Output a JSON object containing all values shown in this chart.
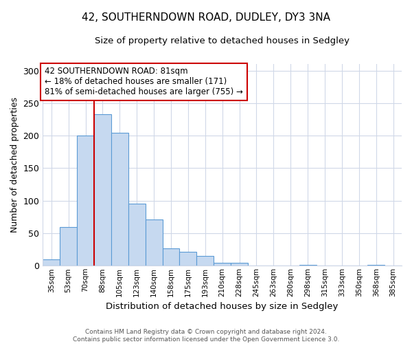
{
  "title": "42, SOUTHERNDOWN ROAD, DUDLEY, DY3 3NA",
  "subtitle": "Size of property relative to detached houses in Sedgley",
  "xlabel": "Distribution of detached houses by size in Sedgley",
  "ylabel": "Number of detached properties",
  "bin_labels": [
    "35sqm",
    "53sqm",
    "70sqm",
    "88sqm",
    "105sqm",
    "123sqm",
    "140sqm",
    "158sqm",
    "175sqm",
    "193sqm",
    "210sqm",
    "228sqm",
    "245sqm",
    "263sqm",
    "280sqm",
    "298sqm",
    "315sqm",
    "333sqm",
    "350sqm",
    "368sqm",
    "385sqm"
  ],
  "bar_heights": [
    10,
    59,
    200,
    233,
    204,
    95,
    71,
    27,
    21,
    15,
    4,
    4,
    0,
    0,
    0,
    1,
    0,
    0,
    0,
    1,
    0
  ],
  "bar_color": "#c6d9f0",
  "bar_edge_color": "#5b9bd5",
  "vline_x_index": 2.5,
  "vline_color": "#cc0000",
  "ylim": [
    0,
    310
  ],
  "yticks": [
    0,
    50,
    100,
    150,
    200,
    250,
    300
  ],
  "annotation_title": "42 SOUTHERNDOWN ROAD: 81sqm",
  "annotation_line1": "← 18% of detached houses are smaller (171)",
  "annotation_line2": "81% of semi-detached houses are larger (755) →",
  "annotation_box_color": "#ffffff",
  "annotation_box_edge": "#cc0000",
  "footer_line1": "Contains HM Land Registry data © Crown copyright and database right 2024.",
  "footer_line2": "Contains public sector information licensed under the Open Government Licence 3.0.",
  "background_color": "#ffffff",
  "grid_color": "#d0d8e8"
}
